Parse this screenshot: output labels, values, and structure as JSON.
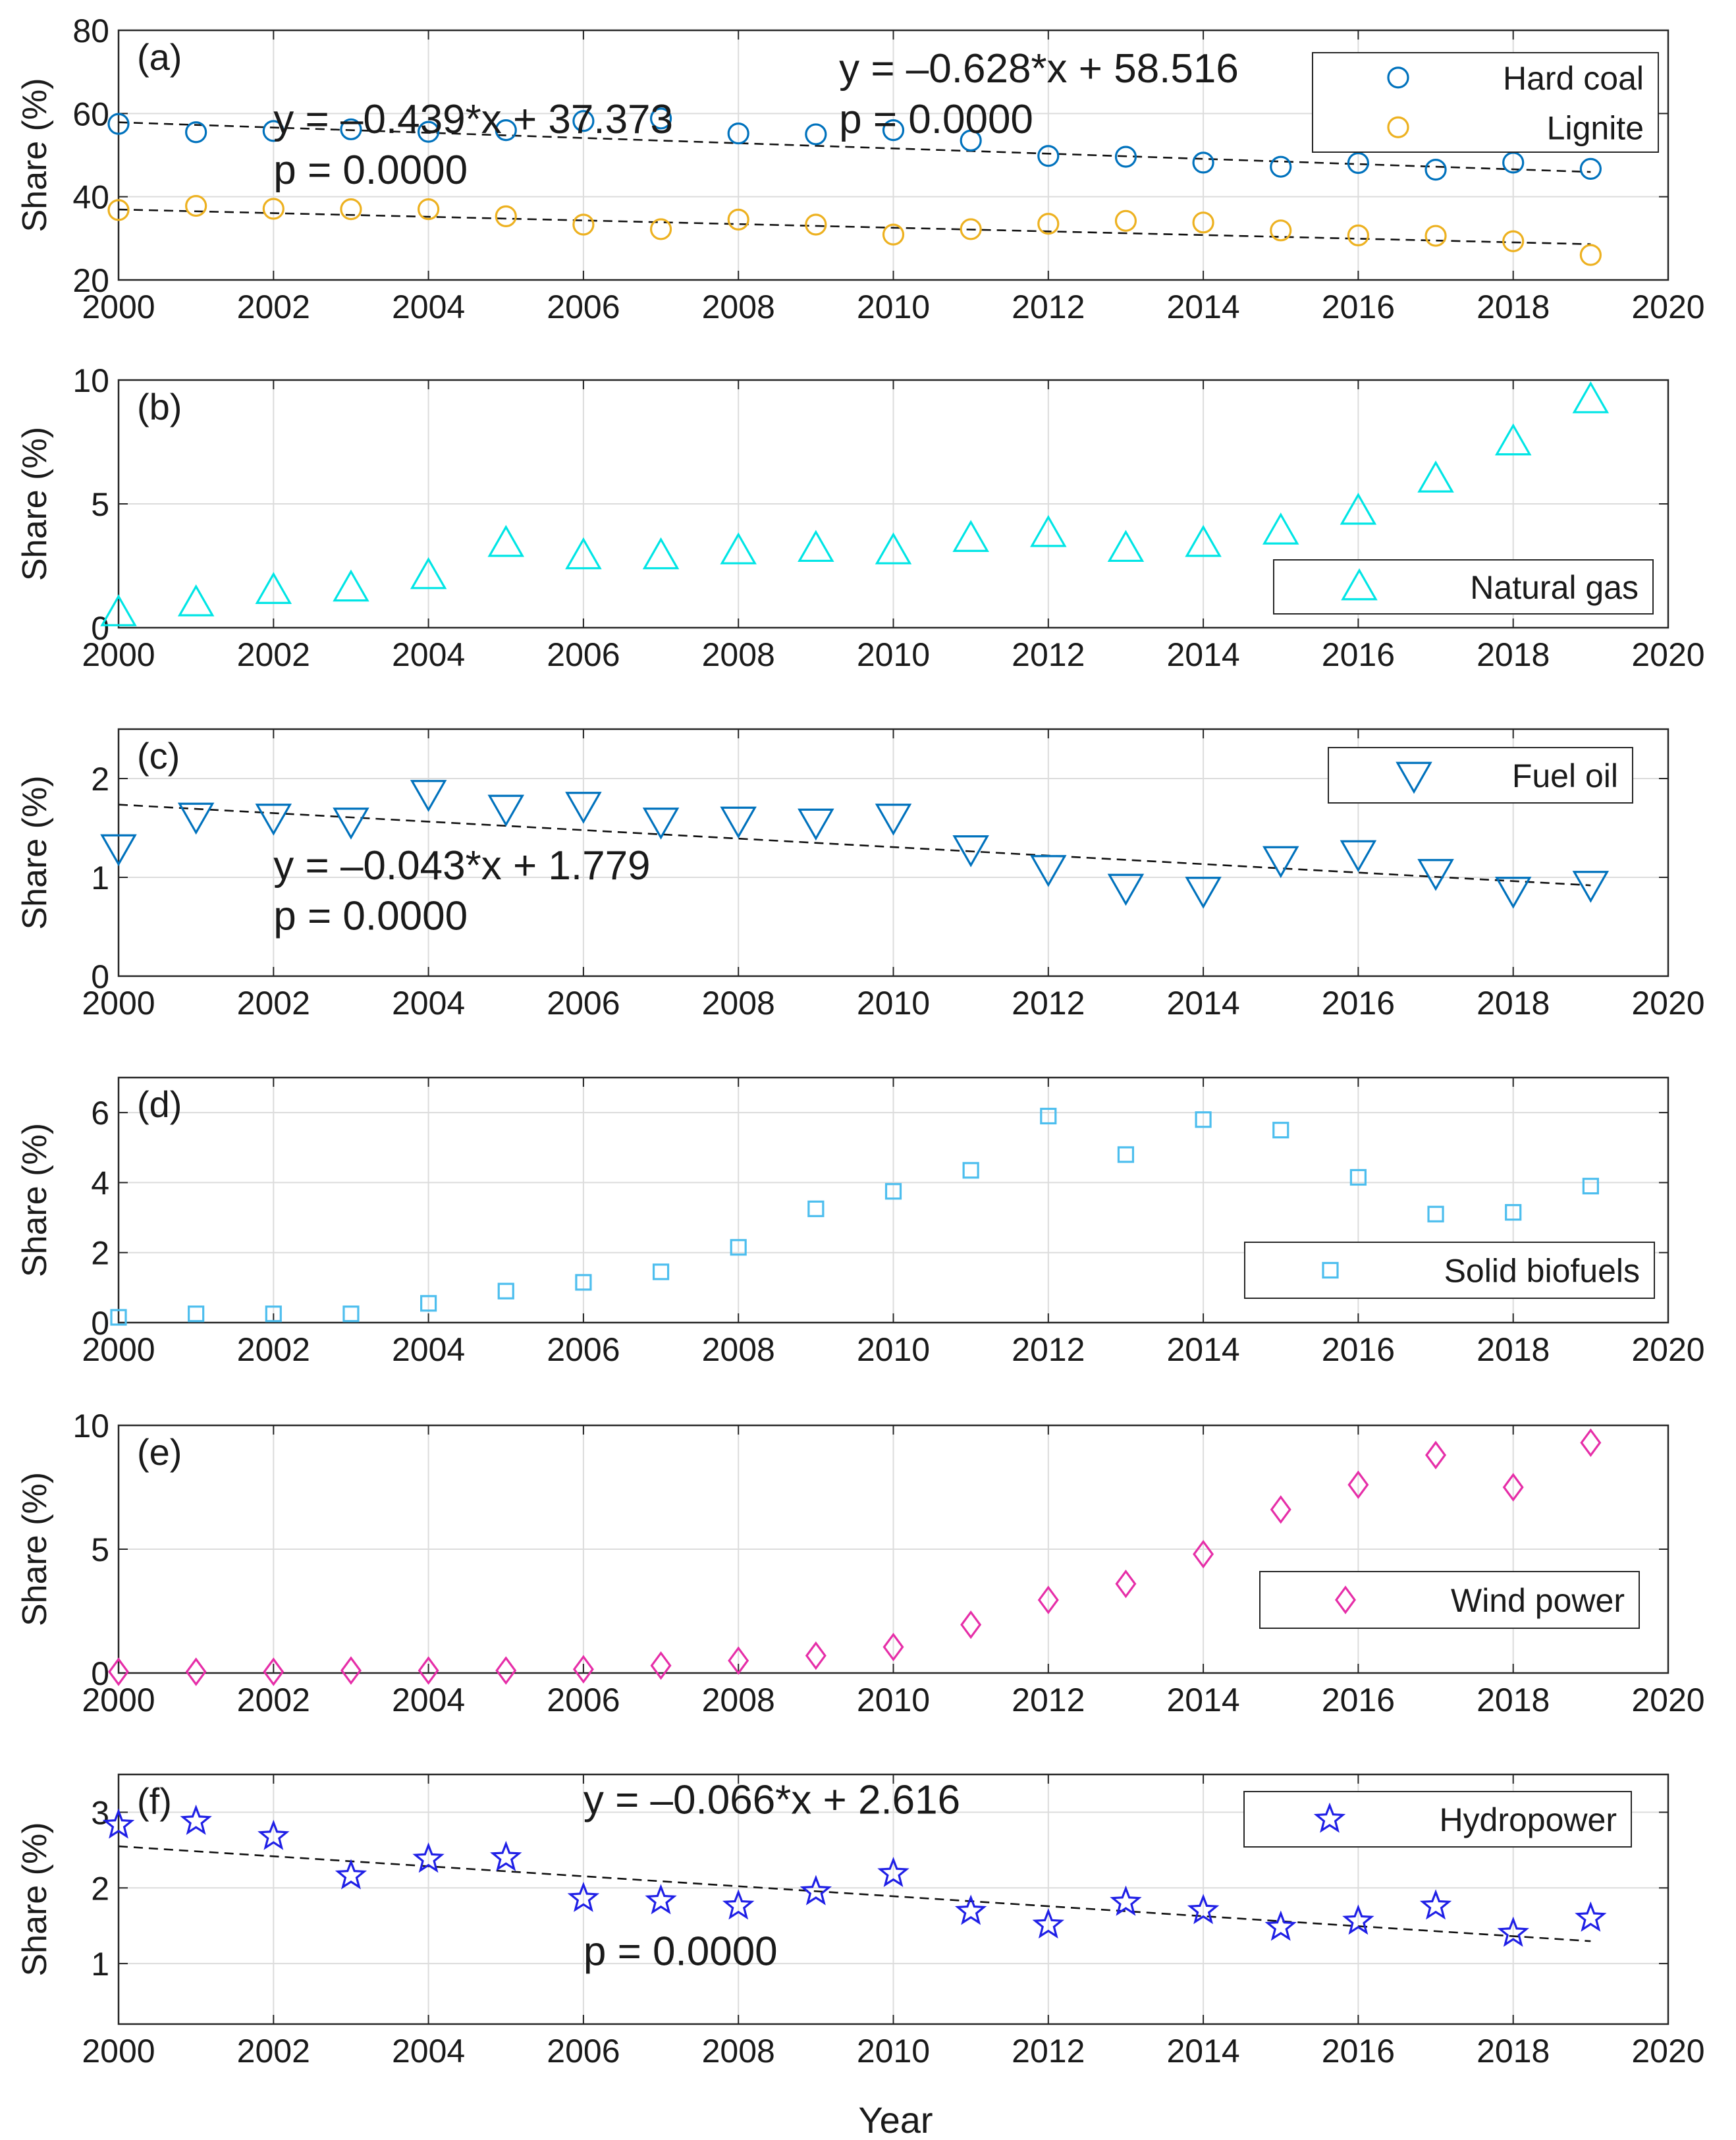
{
  "figure": {
    "xlabel": "Year"
  },
  "chart_data": [
    {
      "type": "scatter",
      "panel": "(a)",
      "xlabel": "",
      "ylabel": "Share (%)",
      "xlim": [
        2000,
        2020
      ],
      "ylim": [
        20,
        80
      ],
      "xticks": [
        "2000",
        "2002",
        "2004",
        "2006",
        "2008",
        "2010",
        "2012",
        "2014",
        "2016",
        "2018",
        "2020"
      ],
      "yticks": [
        "20",
        "40",
        "60",
        "80"
      ],
      "grid": true,
      "legend_position": "top-right",
      "series": [
        {
          "name": "Hard coal",
          "marker": "circle",
          "color": "#0072BD",
          "x": [
            2000,
            2001,
            2002,
            2003,
            2004,
            2005,
            2006,
            2007,
            2008,
            2009,
            2010,
            2011,
            2012,
            2013,
            2014,
            2015,
            2016,
            2017,
            2018,
            2019
          ],
          "values": [
            57.5,
            55.5,
            55.8,
            56.2,
            55.6,
            56.0,
            58.2,
            58.8,
            55.2,
            55.0,
            56.0,
            53.5,
            49.8,
            49.6,
            48.2,
            47.2,
            48.1,
            46.5,
            48.2,
            46.7
          ],
          "trend": {
            "slope": -0.628,
            "intercept": 58.516
          }
        },
        {
          "name": "Lignite",
          "marker": "circle",
          "color": "#EDB120",
          "x": [
            2000,
            2001,
            2002,
            2003,
            2004,
            2005,
            2006,
            2007,
            2008,
            2009,
            2010,
            2011,
            2012,
            2013,
            2014,
            2015,
            2016,
            2017,
            2018,
            2019
          ],
          "values": [
            36.8,
            37.8,
            37.1,
            37.0,
            37.0,
            35.3,
            33.3,
            32.2,
            34.5,
            33.3,
            30.9,
            32.2,
            33.5,
            34.2,
            33.8,
            31.9,
            30.7,
            30.6,
            29.3,
            26.0
          ],
          "trend": {
            "slope": -0.439,
            "intercept": 37.373
          }
        }
      ],
      "annotations": [
        {
          "text": "y = –0.628*x + 58.516",
          "x": 2009.3,
          "y": 67.5
        },
        {
          "text": "p = 0.0000",
          "x": 2009.3,
          "y": 55.3
        },
        {
          "text": "y = –0.439*x + 37.373",
          "x": 2002.0,
          "y": 55.3
        },
        {
          "text": "p = 0.0000",
          "x": 2002.0,
          "y": 43.1
        }
      ]
    },
    {
      "type": "scatter",
      "panel": "(b)",
      "xlabel": "",
      "ylabel": "Share (%)",
      "xlim": [
        2000,
        2020
      ],
      "ylim": [
        0,
        10
      ],
      "xticks": [
        "2000",
        "2002",
        "2004",
        "2006",
        "2008",
        "2010",
        "2012",
        "2014",
        "2016",
        "2018",
        "2020"
      ],
      "yticks": [
        "0",
        "5",
        "10"
      ],
      "grid": true,
      "legend_position": "bottom-right",
      "series": [
        {
          "name": "Natural gas",
          "marker": "triangle-up",
          "color": "#00E5E5",
          "x": [
            2000,
            2001,
            2002,
            2003,
            2004,
            2005,
            2006,
            2007,
            2008,
            2009,
            2010,
            2011,
            2012,
            2013,
            2014,
            2015,
            2016,
            2017,
            2018,
            2019
          ],
          "values": [
            0.6,
            1.0,
            1.5,
            1.6,
            2.1,
            3.4,
            2.9,
            2.9,
            3.1,
            3.2,
            3.1,
            3.6,
            3.8,
            3.2,
            3.4,
            3.9,
            4.7,
            6.0,
            7.5,
            9.2
          ]
        }
      ],
      "annotations": []
    },
    {
      "type": "scatter",
      "panel": "(c)",
      "xlabel": "",
      "ylabel": "Share (%)",
      "xlim": [
        2000,
        2020
      ],
      "ylim": [
        0,
        2.5
      ],
      "xticks": [
        "2000",
        "2002",
        "2004",
        "2006",
        "2008",
        "2010",
        "2012",
        "2014",
        "2016",
        "2018",
        "2020"
      ],
      "yticks": [
        "0",
        "1",
        "2"
      ],
      "grid": true,
      "legend_position": "top-right",
      "series": [
        {
          "name": "Fuel oil",
          "marker": "triangle-down",
          "color": "#0072BD",
          "x": [
            2000,
            2001,
            2002,
            2003,
            2004,
            2005,
            2006,
            2007,
            2008,
            2009,
            2010,
            2011,
            2012,
            2013,
            2014,
            2015,
            2016,
            2017,
            2018,
            2019
          ],
          "values": [
            1.3,
            1.62,
            1.61,
            1.57,
            1.85,
            1.7,
            1.73,
            1.57,
            1.58,
            1.56,
            1.61,
            1.29,
            1.09,
            0.9,
            0.87,
            1.18,
            1.24,
            1.05,
            0.87,
            0.93
          ],
          "trend": {
            "slope": -0.043,
            "intercept": 1.779
          }
        }
      ],
      "annotations": [
        {
          "text": "y = –0.043*x + 1.779",
          "x": 2002.0,
          "y": 0.98
        },
        {
          "text": "p = 0.0000",
          "x": 2002.0,
          "y": 0.47
        }
      ]
    },
    {
      "type": "scatter",
      "panel": "(d)",
      "xlabel": "",
      "ylabel": "Share (%)",
      "xlim": [
        2000,
        2020
      ],
      "ylim": [
        0,
        7
      ],
      "xticks": [
        "2000",
        "2002",
        "2004",
        "2006",
        "2008",
        "2010",
        "2012",
        "2014",
        "2016",
        "2018",
        "2020"
      ],
      "yticks": [
        "0",
        "2",
        "4",
        "6"
      ],
      "grid": true,
      "legend_position": "bottom-right",
      "series": [
        {
          "name": "Solid biofuels",
          "marker": "square",
          "color": "#4DBEEE",
          "x": [
            2000,
            2001,
            2002,
            2003,
            2004,
            2005,
            2006,
            2007,
            2008,
            2009,
            2010,
            2011,
            2012,
            2013,
            2014,
            2015,
            2016,
            2017,
            2018,
            2019
          ],
          "values": [
            0.15,
            0.25,
            0.25,
            0.25,
            0.55,
            0.9,
            1.15,
            1.45,
            2.15,
            3.25,
            3.75,
            4.35,
            5.9,
            4.8,
            5.8,
            5.5,
            4.15,
            3.1,
            3.15,
            3.9
          ]
        }
      ],
      "annotations": []
    },
    {
      "type": "scatter",
      "panel": "(e)",
      "xlabel": "",
      "ylabel": "Share (%)",
      "xlim": [
        2000,
        2020
      ],
      "ylim": [
        0,
        10
      ],
      "xticks": [
        "2000",
        "2002",
        "2004",
        "2006",
        "2008",
        "2010",
        "2012",
        "2014",
        "2016",
        "2018",
        "2020"
      ],
      "yticks": [
        "0",
        "5",
        "10"
      ],
      "grid": true,
      "legend_position": "bottom-right",
      "series": [
        {
          "name": "Wind power",
          "marker": "diamond",
          "color": "#E62EA8",
          "x": [
            2000,
            2001,
            2002,
            2003,
            2004,
            2005,
            2006,
            2007,
            2008,
            2009,
            2010,
            2011,
            2012,
            2013,
            2014,
            2015,
            2016,
            2017,
            2018,
            2019
          ],
          "values": [
            0.05,
            0.05,
            0.05,
            0.1,
            0.1,
            0.1,
            0.15,
            0.3,
            0.5,
            0.7,
            1.05,
            1.95,
            2.95,
            3.6,
            4.8,
            6.6,
            7.6,
            8.8,
            7.5,
            9.3
          ]
        }
      ],
      "annotations": []
    },
    {
      "type": "scatter",
      "panel": "(f)",
      "xlabel": "Year",
      "ylabel": "Share (%)",
      "xlim": [
        2000,
        2020
      ],
      "ylim": [
        0.2,
        3.5
      ],
      "xticks": [
        "2000",
        "2002",
        "2004",
        "2006",
        "2008",
        "2010",
        "2012",
        "2014",
        "2016",
        "2018",
        "2020"
      ],
      "yticks": [
        "1",
        "2",
        "3"
      ],
      "grid": true,
      "legend_position": "top-right",
      "series": [
        {
          "name": "Hydropower",
          "marker": "star",
          "color": "#1F1FE6",
          "x": [
            2000,
            2001,
            2002,
            2003,
            2004,
            2005,
            2006,
            2007,
            2008,
            2009,
            2010,
            2011,
            2012,
            2013,
            2014,
            2015,
            2016,
            2017,
            2018,
            2019
          ],
          "values": [
            2.83,
            2.88,
            2.68,
            2.16,
            2.38,
            2.4,
            1.86,
            1.83,
            1.76,
            1.95,
            2.19,
            1.69,
            1.51,
            1.81,
            1.7,
            1.48,
            1.56,
            1.76,
            1.4,
            1.6
          ],
          "trend": {
            "slope": -0.066,
            "intercept": 2.616
          }
        }
      ],
      "annotations": [
        {
          "text": "y = –0.066*x + 2.616",
          "x": 2006.0,
          "y": 2.98
        },
        {
          "text": "p = 0.0000",
          "x": 2006.0,
          "y": 0.98
        }
      ]
    }
  ]
}
